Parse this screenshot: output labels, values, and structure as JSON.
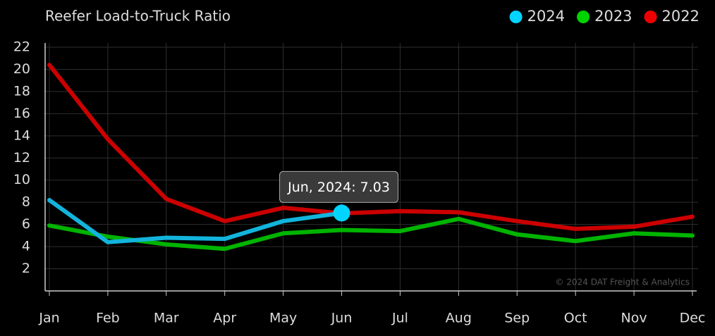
{
  "chart_data": {
    "type": "line",
    "title": "Reefer Load-to-Truck Ratio",
    "categories": [
      "Jan",
      "Feb",
      "Mar",
      "Apr",
      "May",
      "Jun",
      "Jul",
      "Aug",
      "Sep",
      "Oct",
      "Nov",
      "Dec"
    ],
    "series": [
      {
        "name": "2024",
        "color": "#12b4dc",
        "values": [
          8.2,
          4.4,
          4.8,
          4.7,
          6.3,
          7.03,
          null,
          null,
          null,
          null,
          null,
          null
        ]
      },
      {
        "name": "2023",
        "color": "#00b400",
        "values": [
          5.9,
          4.9,
          4.2,
          3.8,
          5.2,
          5.5,
          5.4,
          6.5,
          5.1,
          4.5,
          5.2,
          5.0
        ]
      },
      {
        "name": "2022",
        "color": "#cc0000",
        "values": [
          20.4,
          13.7,
          8.3,
          6.3,
          7.5,
          7.0,
          7.2,
          7.1,
          6.3,
          5.6,
          5.8,
          6.7
        ]
      }
    ],
    "ylim": [
      0,
      22
    ],
    "yticks": [
      2,
      4,
      6,
      8,
      10,
      12,
      14,
      16,
      18,
      20,
      22
    ],
    "grid": true,
    "legend": "top-right",
    "tooltip": "Jun, 2024: 7.03",
    "annotation": "© 2024 DAT Freight & Analytics"
  }
}
